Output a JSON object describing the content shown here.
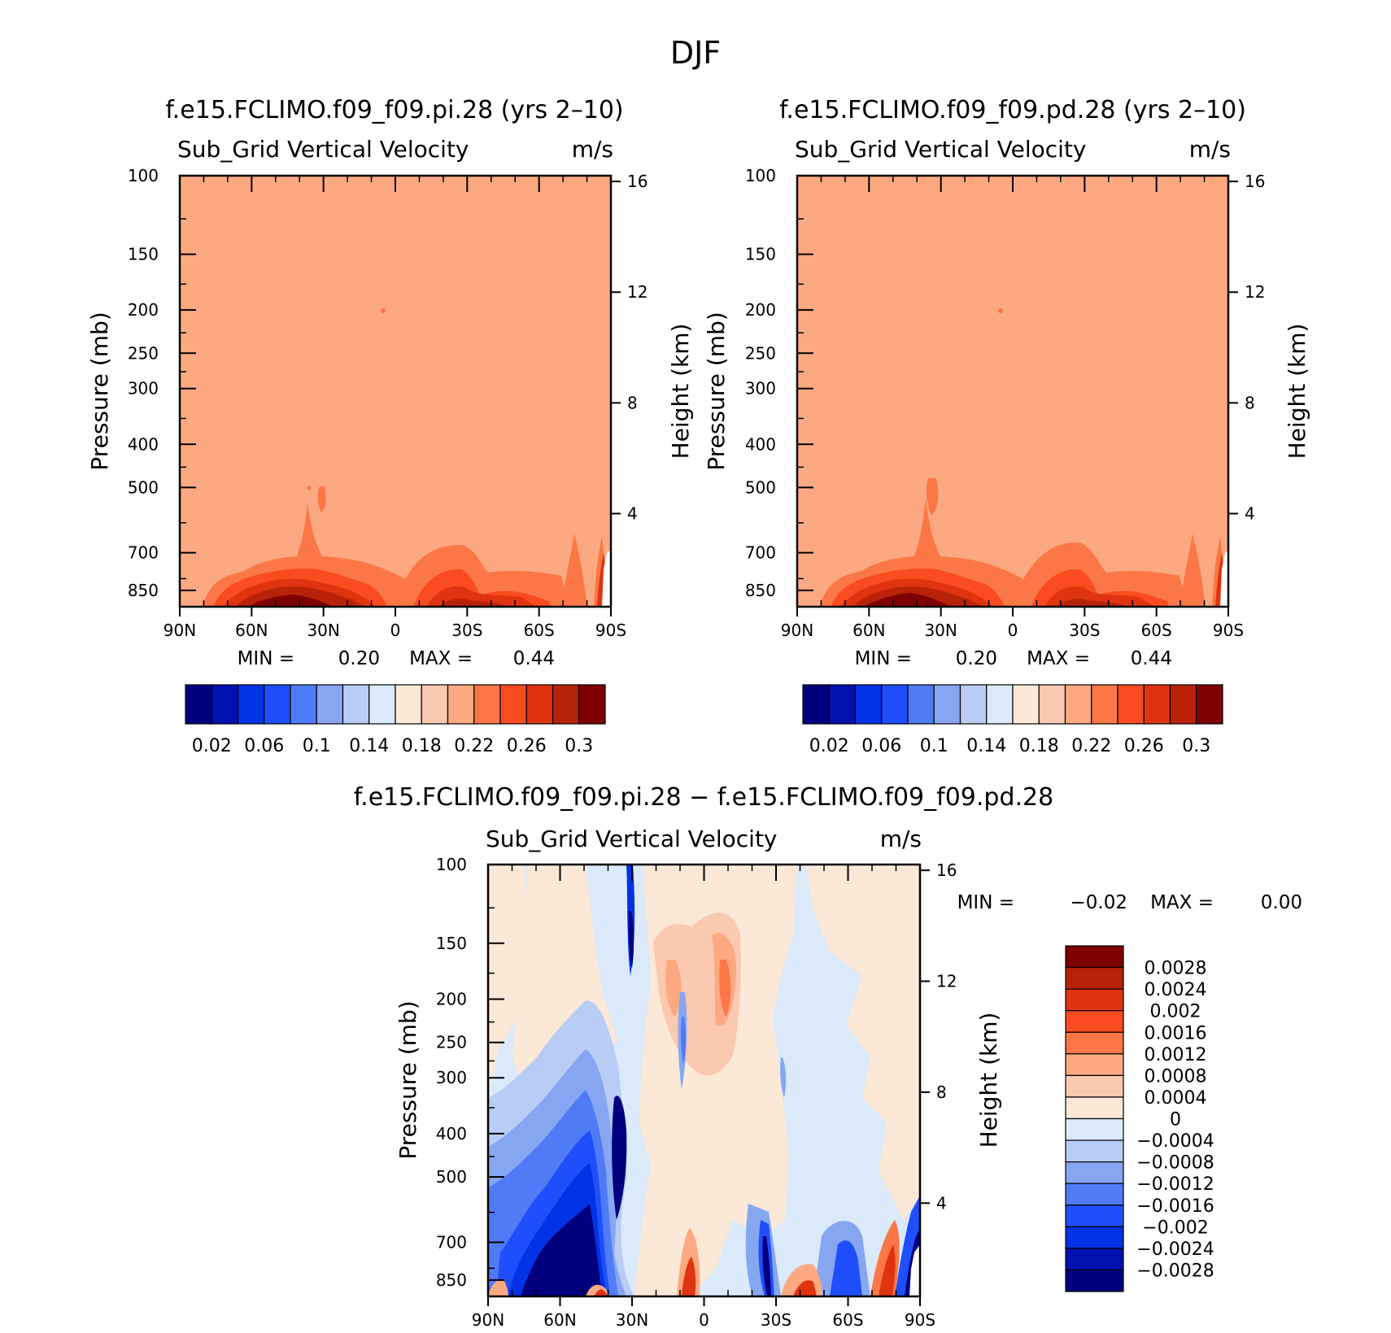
{
  "figure": {
    "title": "DJF"
  },
  "colors": {
    "background": "#ffabb0",
    "fill_mean": "#fca982",
    "axis": "#000000"
  },
  "chart_data": [
    {
      "type": "heatmap",
      "id": "panel-pi",
      "title": "f.e15.FCLIMO.f09_f09.pi.28 (yrs 2–10)",
      "variable": "Sub_Grid Vertical Velocity",
      "units": "m/s",
      "xlabel": "",
      "ylabel": "Pressure (mb)",
      "ylabel_right": "Height (km)",
      "x_ticks": [
        "90N",
        "60N",
        "30N",
        "0",
        "30S",
        "60S",
        "90S"
      ],
      "x_range": [
        90,
        -90
      ],
      "y_ticks": [
        100,
        150,
        200,
        250,
        300,
        400,
        500,
        700,
        850
      ],
      "y_range_mb": [
        100,
        925
      ],
      "y_scale": "log",
      "right_ticks_km": [
        4,
        8,
        12,
        16
      ],
      "min_label": "MIN =",
      "min_value": "0.20",
      "max_label": "MAX =",
      "max_value": "0.44",
      "dominant_level": 0.2,
      "boundary_layer_maxima": [
        {
          "lat": 45,
          "value": 0.44
        },
        {
          "lat": -25,
          "value": 0.31
        },
        {
          "lat": -50,
          "value": 0.29
        }
      ],
      "colorbar": {
        "orientation": "horizontal",
        "labels": [
          "0.02",
          "0.06",
          "0.1",
          "0.14",
          "0.18",
          "0.22",
          "0.26",
          "0.3"
        ],
        "levels": [
          0.02,
          0.04,
          0.06,
          0.08,
          0.1,
          0.12,
          0.14,
          0.16,
          0.18,
          0.2,
          0.22,
          0.24,
          0.26,
          0.28,
          0.3
        ],
        "colors": [
          "#00007f",
          "#0011b0",
          "#0033e6",
          "#1f4ffc",
          "#4f7bf7",
          "#87a6f2",
          "#b8ccf5",
          "#daeafa",
          "#fce8d7",
          "#fbc8b0",
          "#fca982",
          "#fc7747",
          "#fa4c20",
          "#e0330f",
          "#b82208",
          "#7f0000"
        ]
      }
    },
    {
      "type": "heatmap",
      "id": "panel-pd",
      "title": "f.e15.FCLIMO.f09_f09.pd.28 (yrs 2–10)",
      "variable": "Sub_Grid Vertical Velocity",
      "units": "m/s",
      "xlabel": "",
      "ylabel": "Pressure (mb)",
      "ylabel_right": "Height (km)",
      "x_ticks": [
        "90N",
        "60N",
        "30N",
        "0",
        "30S",
        "60S",
        "90S"
      ],
      "x_range": [
        90,
        -90
      ],
      "y_ticks": [
        100,
        150,
        200,
        250,
        300,
        400,
        500,
        700,
        850
      ],
      "y_range_mb": [
        100,
        925
      ],
      "y_scale": "log",
      "right_ticks_km": [
        4,
        8,
        12,
        16
      ],
      "min_label": "MIN =",
      "min_value": "0.20",
      "max_label": "MAX =",
      "max_value": "0.44",
      "dominant_level": 0.2,
      "boundary_layer_maxima": [
        {
          "lat": 45,
          "value": 0.44
        },
        {
          "lat": -25,
          "value": 0.31
        },
        {
          "lat": -50,
          "value": 0.29
        }
      ],
      "colorbar": {
        "orientation": "horizontal",
        "labels": [
          "0.02",
          "0.06",
          "0.1",
          "0.14",
          "0.18",
          "0.22",
          "0.26",
          "0.3"
        ],
        "levels": [
          0.02,
          0.04,
          0.06,
          0.08,
          0.1,
          0.12,
          0.14,
          0.16,
          0.18,
          0.2,
          0.22,
          0.24,
          0.26,
          0.28,
          0.3
        ],
        "colors": [
          "#00007f",
          "#0011b0",
          "#0033e6",
          "#1f4ffc",
          "#4f7bf7",
          "#87a6f2",
          "#b8ccf5",
          "#daeafa",
          "#fce8d7",
          "#fbc8b0",
          "#fca982",
          "#fc7747",
          "#fa4c20",
          "#e0330f",
          "#b82208",
          "#7f0000"
        ]
      }
    },
    {
      "type": "heatmap",
      "id": "panel-diff",
      "title": "f.e15.FCLIMO.f09_f09.pi.28 − f.e15.FCLIMO.f09_f09.pd.28",
      "variable": "Sub_Grid Vertical Velocity",
      "units": "m/s",
      "xlabel": "",
      "ylabel": "Pressure (mb)",
      "ylabel_right": "Height (km)",
      "x_ticks": [
        "90N",
        "60N",
        "30N",
        "0",
        "30S",
        "60S",
        "90S"
      ],
      "x_range": [
        90,
        -90
      ],
      "y_ticks": [
        100,
        150,
        200,
        250,
        300,
        400,
        500,
        700,
        850
      ],
      "y_range_mb": [
        100,
        925
      ],
      "y_scale": "log",
      "right_ticks_km": [
        4,
        8,
        12,
        16
      ],
      "min_label": "MIN =",
      "min_value": "−0.02",
      "max_label": "MAX =",
      "max_value": "0.00",
      "colorbar": {
        "orientation": "vertical",
        "labels": [
          "0.0028",
          "0.0024",
          "0.002",
          "0.0016",
          "0.0012",
          "0.0008",
          "0.0004",
          "0",
          "−0.0004",
          "−0.0008",
          "−0.0012",
          "−0.0016",
          "−0.002",
          "−0.0024",
          "−0.0028"
        ],
        "levels": [
          0.0028,
          0.0024,
          0.002,
          0.0016,
          0.0012,
          0.0008,
          0.0004,
          0,
          -0.0004,
          -0.0008,
          -0.0012,
          -0.0016,
          -0.002,
          -0.0024,
          -0.0028
        ],
        "colors": [
          "#7f0000",
          "#b82208",
          "#e0330f",
          "#fa4c20",
          "#fc7747",
          "#fca982",
          "#fbc8b0",
          "#fce8d7",
          "#daeafa",
          "#b8ccf5",
          "#87a6f2",
          "#4f7bf7",
          "#1f4ffc",
          "#0033e6",
          "#0011b0",
          "#00007f"
        ]
      }
    }
  ]
}
